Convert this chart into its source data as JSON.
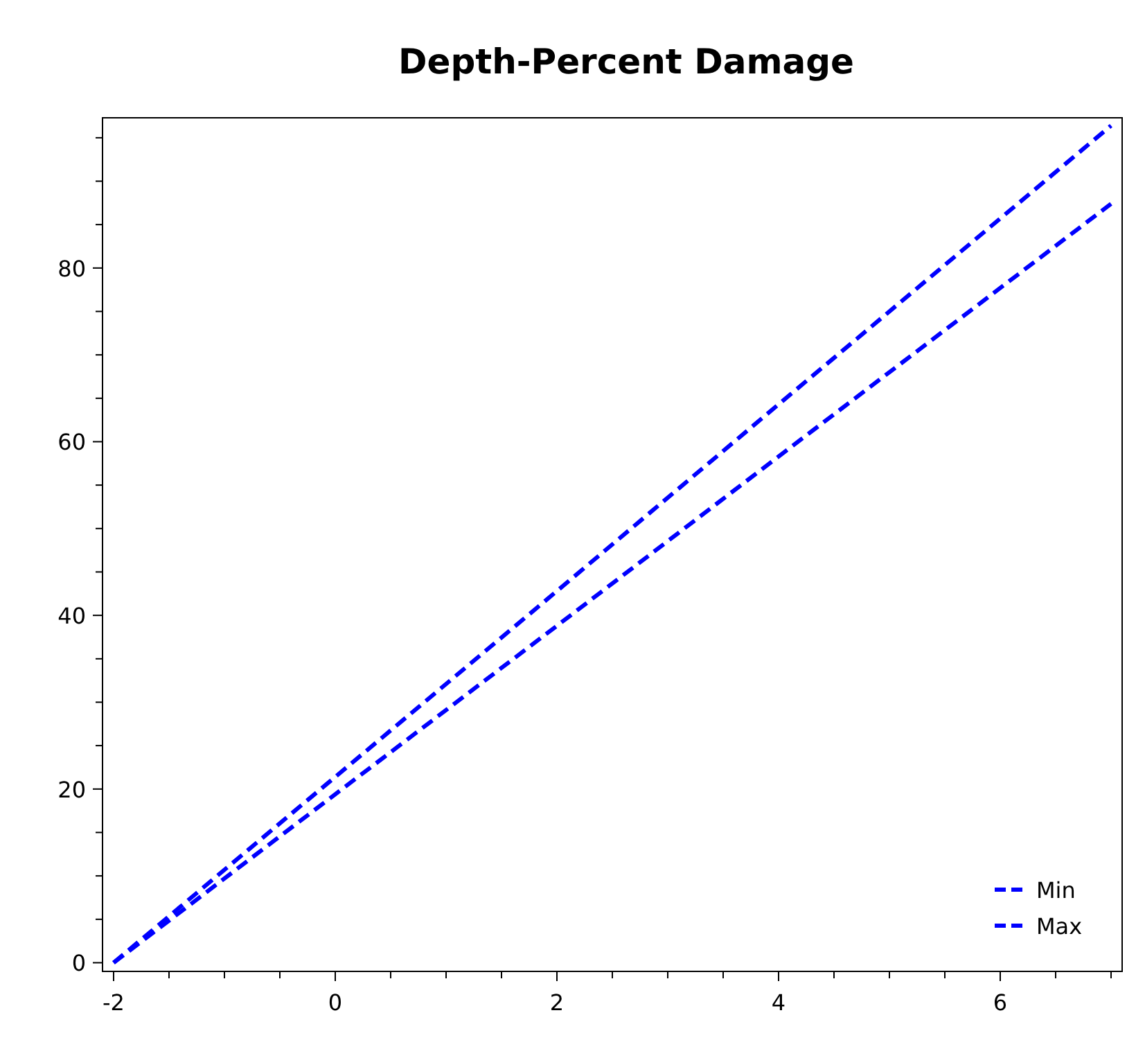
{
  "chart_data": {
    "type": "line",
    "title": "Depth-Percent Damage",
    "x": [
      -2,
      0,
      2,
      4,
      7
    ],
    "series": [
      {
        "name": "Min",
        "color": "#0000ff",
        "values": [
          0,
          19.4,
          38.8,
          58.3,
          87.4
        ]
      },
      {
        "name": "Max",
        "color": "#0000ff",
        "values": [
          0,
          21.4,
          42.8,
          64.3,
          96.4
        ]
      }
    ],
    "xlim": [
      -2.1,
      7.1
    ],
    "ylim": [
      -1,
      97.3
    ],
    "xticks": [
      -2,
      {
        "value": -1.5,
        "label": null
      },
      {
        "value": -1,
        "label": null
      },
      {
        "value": -0.5,
        "label": null
      },
      0,
      {
        "value": 0.5,
        "label": null
      },
      {
        "value": 1,
        "label": null
      },
      {
        "value": 1.5,
        "label": null
      },
      2,
      {
        "value": 2.5,
        "label": null
      },
      {
        "value": 3,
        "label": null
      },
      {
        "value": 3.5,
        "label": null
      },
      4,
      {
        "value": 4.5,
        "label": null
      },
      {
        "value": 5,
        "label": null
      },
      {
        "value": 5.5,
        "label": null
      },
      6,
      {
        "value": 6.5,
        "label": null
      },
      {
        "value": 7,
        "label": null
      }
    ],
    "yticks": [
      0,
      {
        "value": 5,
        "label": null
      },
      {
        "value": 10,
        "label": null
      },
      {
        "value": 15,
        "label": null
      },
      20,
      {
        "value": 25,
        "label": null
      },
      {
        "value": 30,
        "label": null
      },
      {
        "value": 35,
        "label": null
      },
      40,
      {
        "value": 45,
        "label": null
      },
      {
        "value": 50,
        "label": null
      },
      {
        "value": 55,
        "label": null
      },
      60,
      {
        "value": 65,
        "label": null
      },
      {
        "value": 70,
        "label": null
      },
      {
        "value": 75,
        "label": null
      },
      80,
      {
        "value": 85,
        "label": null
      },
      {
        "value": 90,
        "label": null
      },
      {
        "value": 95,
        "label": null
      }
    ],
    "grid": false,
    "legend": "bottom right",
    "line_style": "dashed",
    "marker": "none"
  }
}
